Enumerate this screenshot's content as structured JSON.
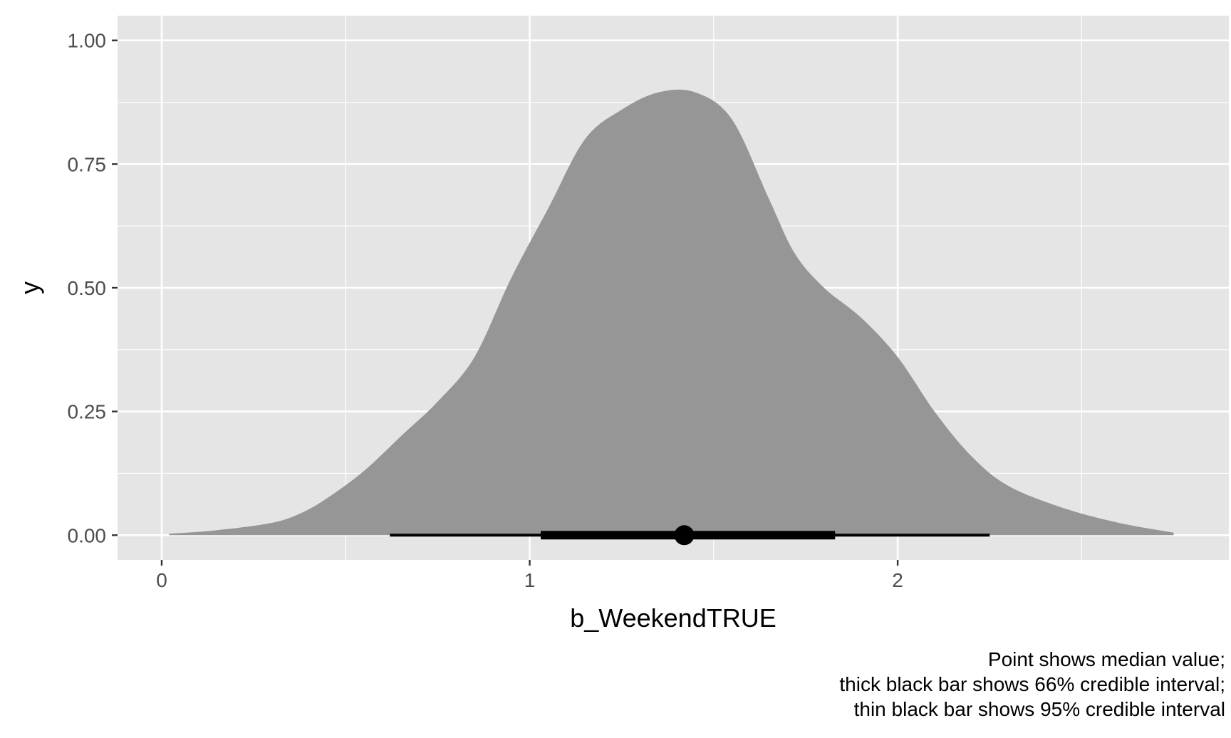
{
  "chart_data": {
    "type": "area",
    "chart_kind": "posterior density with median point and credible intervals",
    "xlabel": "b_WeekendTRUE",
    "ylabel": "y",
    "xlim": [
      -0.12,
      2.9
    ],
    "ylim": [
      -0.05,
      1.05
    ],
    "x_ticks": [
      0,
      1,
      2
    ],
    "x_tick_labels": [
      "0",
      "1",
      "2"
    ],
    "x_minor_ticks": [
      0.5,
      1.5,
      2.5
    ],
    "y_ticks": [
      0,
      0.25,
      0.5,
      0.75,
      1.0
    ],
    "y_tick_labels": [
      "0.00",
      "0.25",
      "0.50",
      "0.75",
      "1.00"
    ],
    "y_minor_ticks": [
      0.125,
      0.375,
      0.625,
      0.875
    ],
    "grid": true,
    "density": {
      "x": [
        0.02,
        0.15,
        0.3,
        0.38,
        0.45,
        0.55,
        0.65,
        0.75,
        0.85,
        0.95,
        1.05,
        1.15,
        1.25,
        1.35,
        1.45,
        1.55,
        1.65,
        1.72,
        1.8,
        1.9,
        2.0,
        2.1,
        2.2,
        2.3,
        2.45,
        2.6,
        2.75
      ],
      "y": [
        0.003,
        0.01,
        0.025,
        0.045,
        0.075,
        0.13,
        0.2,
        0.27,
        0.36,
        0.52,
        0.66,
        0.8,
        0.86,
        0.895,
        0.895,
        0.84,
        0.68,
        0.57,
        0.5,
        0.44,
        0.36,
        0.25,
        0.16,
        0.1,
        0.055,
        0.025,
        0.005
      ]
    },
    "median": 1.42,
    "interval_66": [
      1.03,
      1.83
    ],
    "interval_95": [
      0.62,
      2.25
    ],
    "colors": {
      "panel": "#e5e5e5",
      "grid": "#ffffff",
      "density_fill": "#969696",
      "interval": "#000000",
      "tick": "#333333"
    },
    "caption": [
      "Point shows median value;",
      "thick black bar shows 66% credible interval;",
      "thin black bar shows 95% credible interval"
    ]
  }
}
